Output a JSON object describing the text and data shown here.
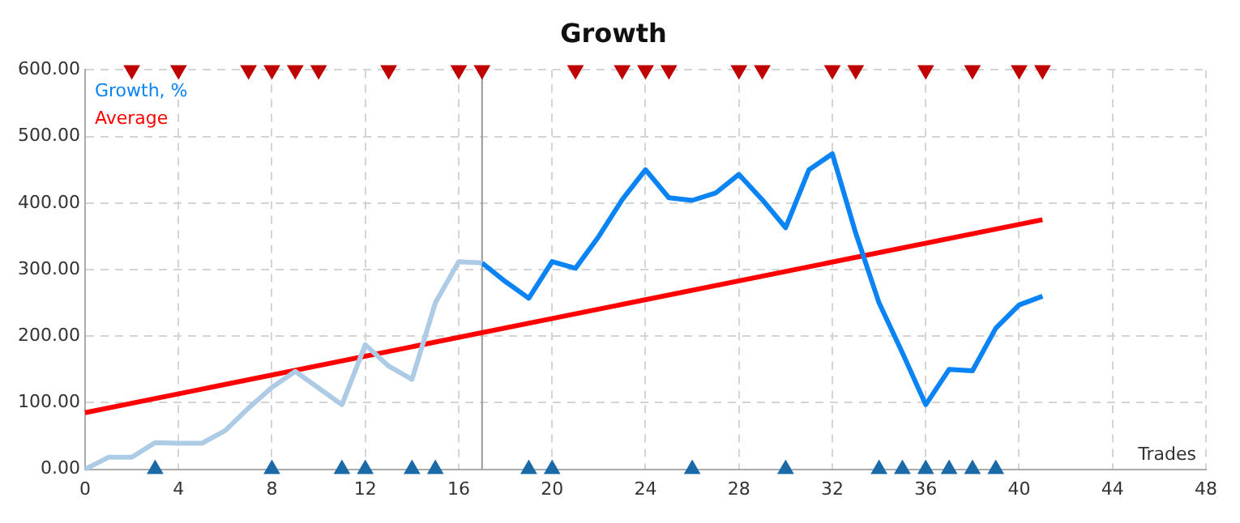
{
  "chart_data": {
    "type": "line",
    "title": "Growth",
    "xlabel": "Trades",
    "xlim": [
      0,
      48
    ],
    "xticks": [
      0,
      4,
      8,
      12,
      16,
      20,
      24,
      28,
      32,
      36,
      40,
      44,
      48
    ],
    "ylim": [
      0,
      600
    ],
    "yticks": [
      {
        "value": 0,
        "label": "0.00"
      },
      {
        "value": 100,
        "label": "100.00"
      },
      {
        "value": 200,
        "label": "200.00"
      },
      {
        "value": 300,
        "label": "300.00"
      },
      {
        "value": 400,
        "label": "400.00"
      },
      {
        "value": 500,
        "label": "500.00"
      },
      {
        "value": 600,
        "label": "600.00"
      }
    ],
    "grid": true,
    "legend": "top left",
    "series": [
      {
        "color": "#aecbe6",
        "x": [
          0,
          1,
          2,
          3,
          4,
          5,
          6,
          7,
          8,
          9,
          10,
          11,
          12,
          13,
          14,
          15,
          16,
          17
        ],
        "values": [
          0,
          18,
          18,
          40,
          39,
          39,
          58,
          92,
          123,
          147,
          122,
          97,
          187,
          155,
          135,
          250,
          312,
          310
        ]
      },
      {
        "name": "Growth, %",
        "color": "#0a84f5",
        "x": [
          17,
          18,
          19,
          20,
          21,
          22,
          23,
          24,
          25,
          26,
          27,
          28,
          29,
          30,
          31,
          32,
          33,
          34,
          35,
          36,
          37,
          38,
          39,
          40,
          41
        ],
        "values": [
          310,
          282,
          257,
          312,
          302,
          350,
          405,
          450,
          408,
          404,
          415,
          443,
          405,
          363,
          450,
          474,
          355,
          250,
          175,
          97,
          150,
          148,
          212,
          247,
          260
        ]
      },
      {
        "name": "Average",
        "color": "#ff0000",
        "x": [
          0,
          41
        ],
        "values": [
          85,
          375
        ]
      },
      {
        "type": "scatter",
        "marker": "triangle",
        "color": "#c00000",
        "x": [
          2,
          4,
          7,
          8,
          9,
          10,
          13,
          16,
          17,
          21,
          23,
          24,
          25,
          28,
          29,
          32,
          33,
          36,
          38,
          40,
          41
        ],
        "values": [
          600,
          600,
          600,
          600,
          600,
          600,
          600,
          600,
          600,
          600,
          600,
          600,
          600,
          600,
          600,
          600,
          600,
          600,
          600,
          600,
          600
        ]
      },
      {
        "type": "scatter",
        "marker": "triangle",
        "color": "#1a6aa8",
        "x": [
          3,
          8,
          11,
          12,
          14,
          15,
          19,
          20,
          26,
          30,
          34,
          35,
          36,
          37,
          38,
          39
        ],
        "values": [
          0,
          0,
          0,
          0,
          0,
          0,
          0,
          0,
          0,
          0,
          0,
          0,
          0,
          0,
          0,
          0
        ]
      }
    ],
    "ref_lines": [
      {
        "axis": "x",
        "value": 17,
        "color": "#999999"
      }
    ]
  }
}
